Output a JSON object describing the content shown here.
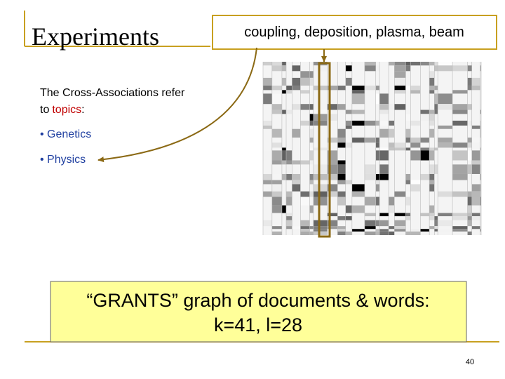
{
  "header": {
    "title": "Experiments"
  },
  "callout": {
    "text": "coupling, deposition, plasma, beam"
  },
  "body": {
    "intro_line1": "The Cross-Associations refer",
    "intro_line2": [
      "to",
      "topics",
      ":"
    ],
    "bullets": [
      "Genetics",
      "Physics"
    ]
  },
  "caption": {
    "lines": [
      "“GRANTS” graph of documents & words:",
      "k=41, l=28"
    ]
  },
  "page_number": "40"
}
